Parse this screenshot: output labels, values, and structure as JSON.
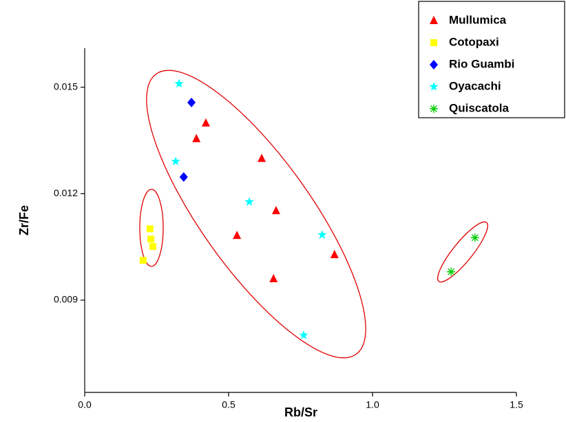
{
  "chart_data": {
    "type": "scatter",
    "x_label": "Rb/Sr",
    "y_label": "Zr/Fe",
    "xlim": [
      0,
      1.5
    ],
    "ylim": [
      0.0064,
      0.0161
    ],
    "xticks": [
      {
        "value": 0,
        "label": "0.0"
      },
      0.5,
      {
        "value": 1,
        "label": "1.0"
      },
      1.5
    ],
    "yticks": [
      0.009,
      0.012,
      0.015
    ],
    "legend": "top-right",
    "series": [
      {
        "name": "Mullumica",
        "color": "#ff0000",
        "marker": "triangle",
        "x": [
          0.421,
          0.388,
          0.615,
          0.665,
          0.529,
          0.868,
          0.656
        ],
        "y": [
          0.01399,
          0.01355,
          0.01299,
          0.01152,
          0.01082,
          0.01028,
          0.0096
        ]
      },
      {
        "name": "Cotopaxi",
        "color": "#ffff00",
        "marker": "square",
        "x": [
          0.227,
          0.23,
          0.237,
          0.203
        ],
        "y": [
          0.01101,
          0.01072,
          0.01051,
          0.01012
        ]
      },
      {
        "name": "Rio Guambi",
        "color": "#0000ff",
        "marker": "diamond",
        "x": [
          0.371,
          0.344
        ],
        "y": [
          0.01457,
          0.01247
        ]
      },
      {
        "name": "Oyacachi",
        "color": "#00ffff",
        "marker": "star",
        "x": [
          0.328,
          0.316,
          0.572,
          0.825,
          0.761
        ],
        "y": [
          0.0151,
          0.01291,
          0.01177,
          0.01084,
          0.00801
        ]
      },
      {
        "name": "Quiscatola",
        "color": "#00cc00",
        "marker": "asterisk",
        "x": [
          1.356,
          1.273
        ],
        "y": [
          0.01076,
          0.0098
        ]
      }
    ]
  }
}
